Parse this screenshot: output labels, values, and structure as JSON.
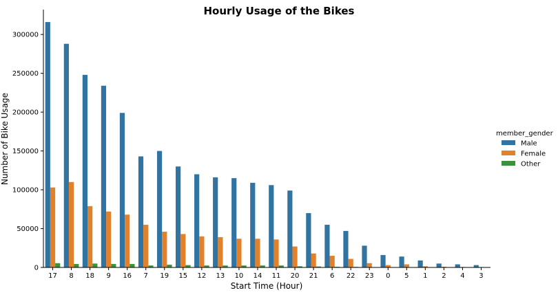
{
  "chart_data": {
    "type": "bar",
    "title": "Hourly Usage of the Bikes",
    "xlabel": "Start Time (Hour)",
    "ylabel": "Number of Bike Usage",
    "ylim": [
      0,
      332000
    ],
    "yticks": [
      0,
      50000,
      100000,
      150000,
      200000,
      250000,
      300000
    ],
    "grid": false,
    "legend_title": "member_gender",
    "legend_position": "right",
    "categories": [
      "17",
      "8",
      "18",
      "9",
      "16",
      "7",
      "19",
      "15",
      "12",
      "13",
      "10",
      "14",
      "11",
      "20",
      "21",
      "6",
      "22",
      "23",
      "0",
      "5",
      "1",
      "2",
      "4",
      "3"
    ],
    "series": [
      {
        "name": "Male",
        "color": "#3274a1",
        "values": [
          316000,
          288000,
          248000,
          234000,
          199000,
          143000,
          150000,
          130000,
          120000,
          116000,
          115000,
          109000,
          106000,
          99000,
          70000,
          55000,
          47000,
          28000,
          16000,
          14000,
          9000,
          5000,
          4000,
          3000
        ]
      },
      {
        "name": "Female",
        "color": "#e1812c",
        "values": [
          103000,
          110000,
          79000,
          72000,
          68000,
          55000,
          46000,
          43000,
          40000,
          39000,
          37000,
          37000,
          36000,
          27000,
          18000,
          15000,
          11000,
          5500,
          3000,
          4000,
          1500,
          800,
          600,
          500
        ]
      },
      {
        "name": "Other",
        "color": "#3a923a",
        "values": [
          5500,
          4500,
          5000,
          4500,
          4500,
          2500,
          3500,
          3000,
          2500,
          2500,
          2500,
          2500,
          2500,
          1500,
          1200,
          800,
          700,
          400,
          300,
          200,
          150,
          100,
          100,
          100
        ]
      }
    ]
  }
}
